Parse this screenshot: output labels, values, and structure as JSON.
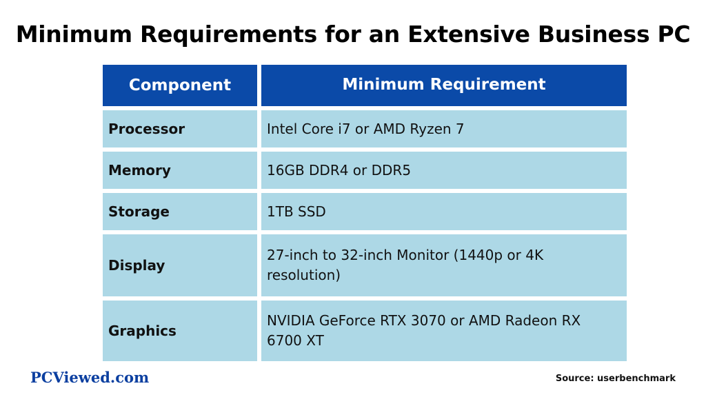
{
  "title": "Minimum Requirements for an Extensive Business PC",
  "table": {
    "headers": [
      "Component",
      "Minimum Requirement"
    ],
    "rows": [
      {
        "component": "Processor",
        "requirement": "Intel Core i7 or AMD Ryzen 7"
      },
      {
        "component": "Memory",
        "requirement": "16GB DDR4 or DDR5"
      },
      {
        "component": "Storage",
        "requirement": "1TB SSD"
      },
      {
        "component": "Display",
        "requirement": "27-inch to 32-inch Monitor (1440p or 4K resolution)"
      },
      {
        "component": "Graphics",
        "requirement": "NVIDIA GeForce RTX 3070 or AMD Radeon RX 6700 XT"
      }
    ]
  },
  "footer": {
    "brand": "PCViewed.com",
    "source": "Source: userbenchmark"
  },
  "colors": {
    "header_bg": "#0b4aa8",
    "cell_bg": "#add8e6",
    "brand": "#0b3fa0"
  }
}
